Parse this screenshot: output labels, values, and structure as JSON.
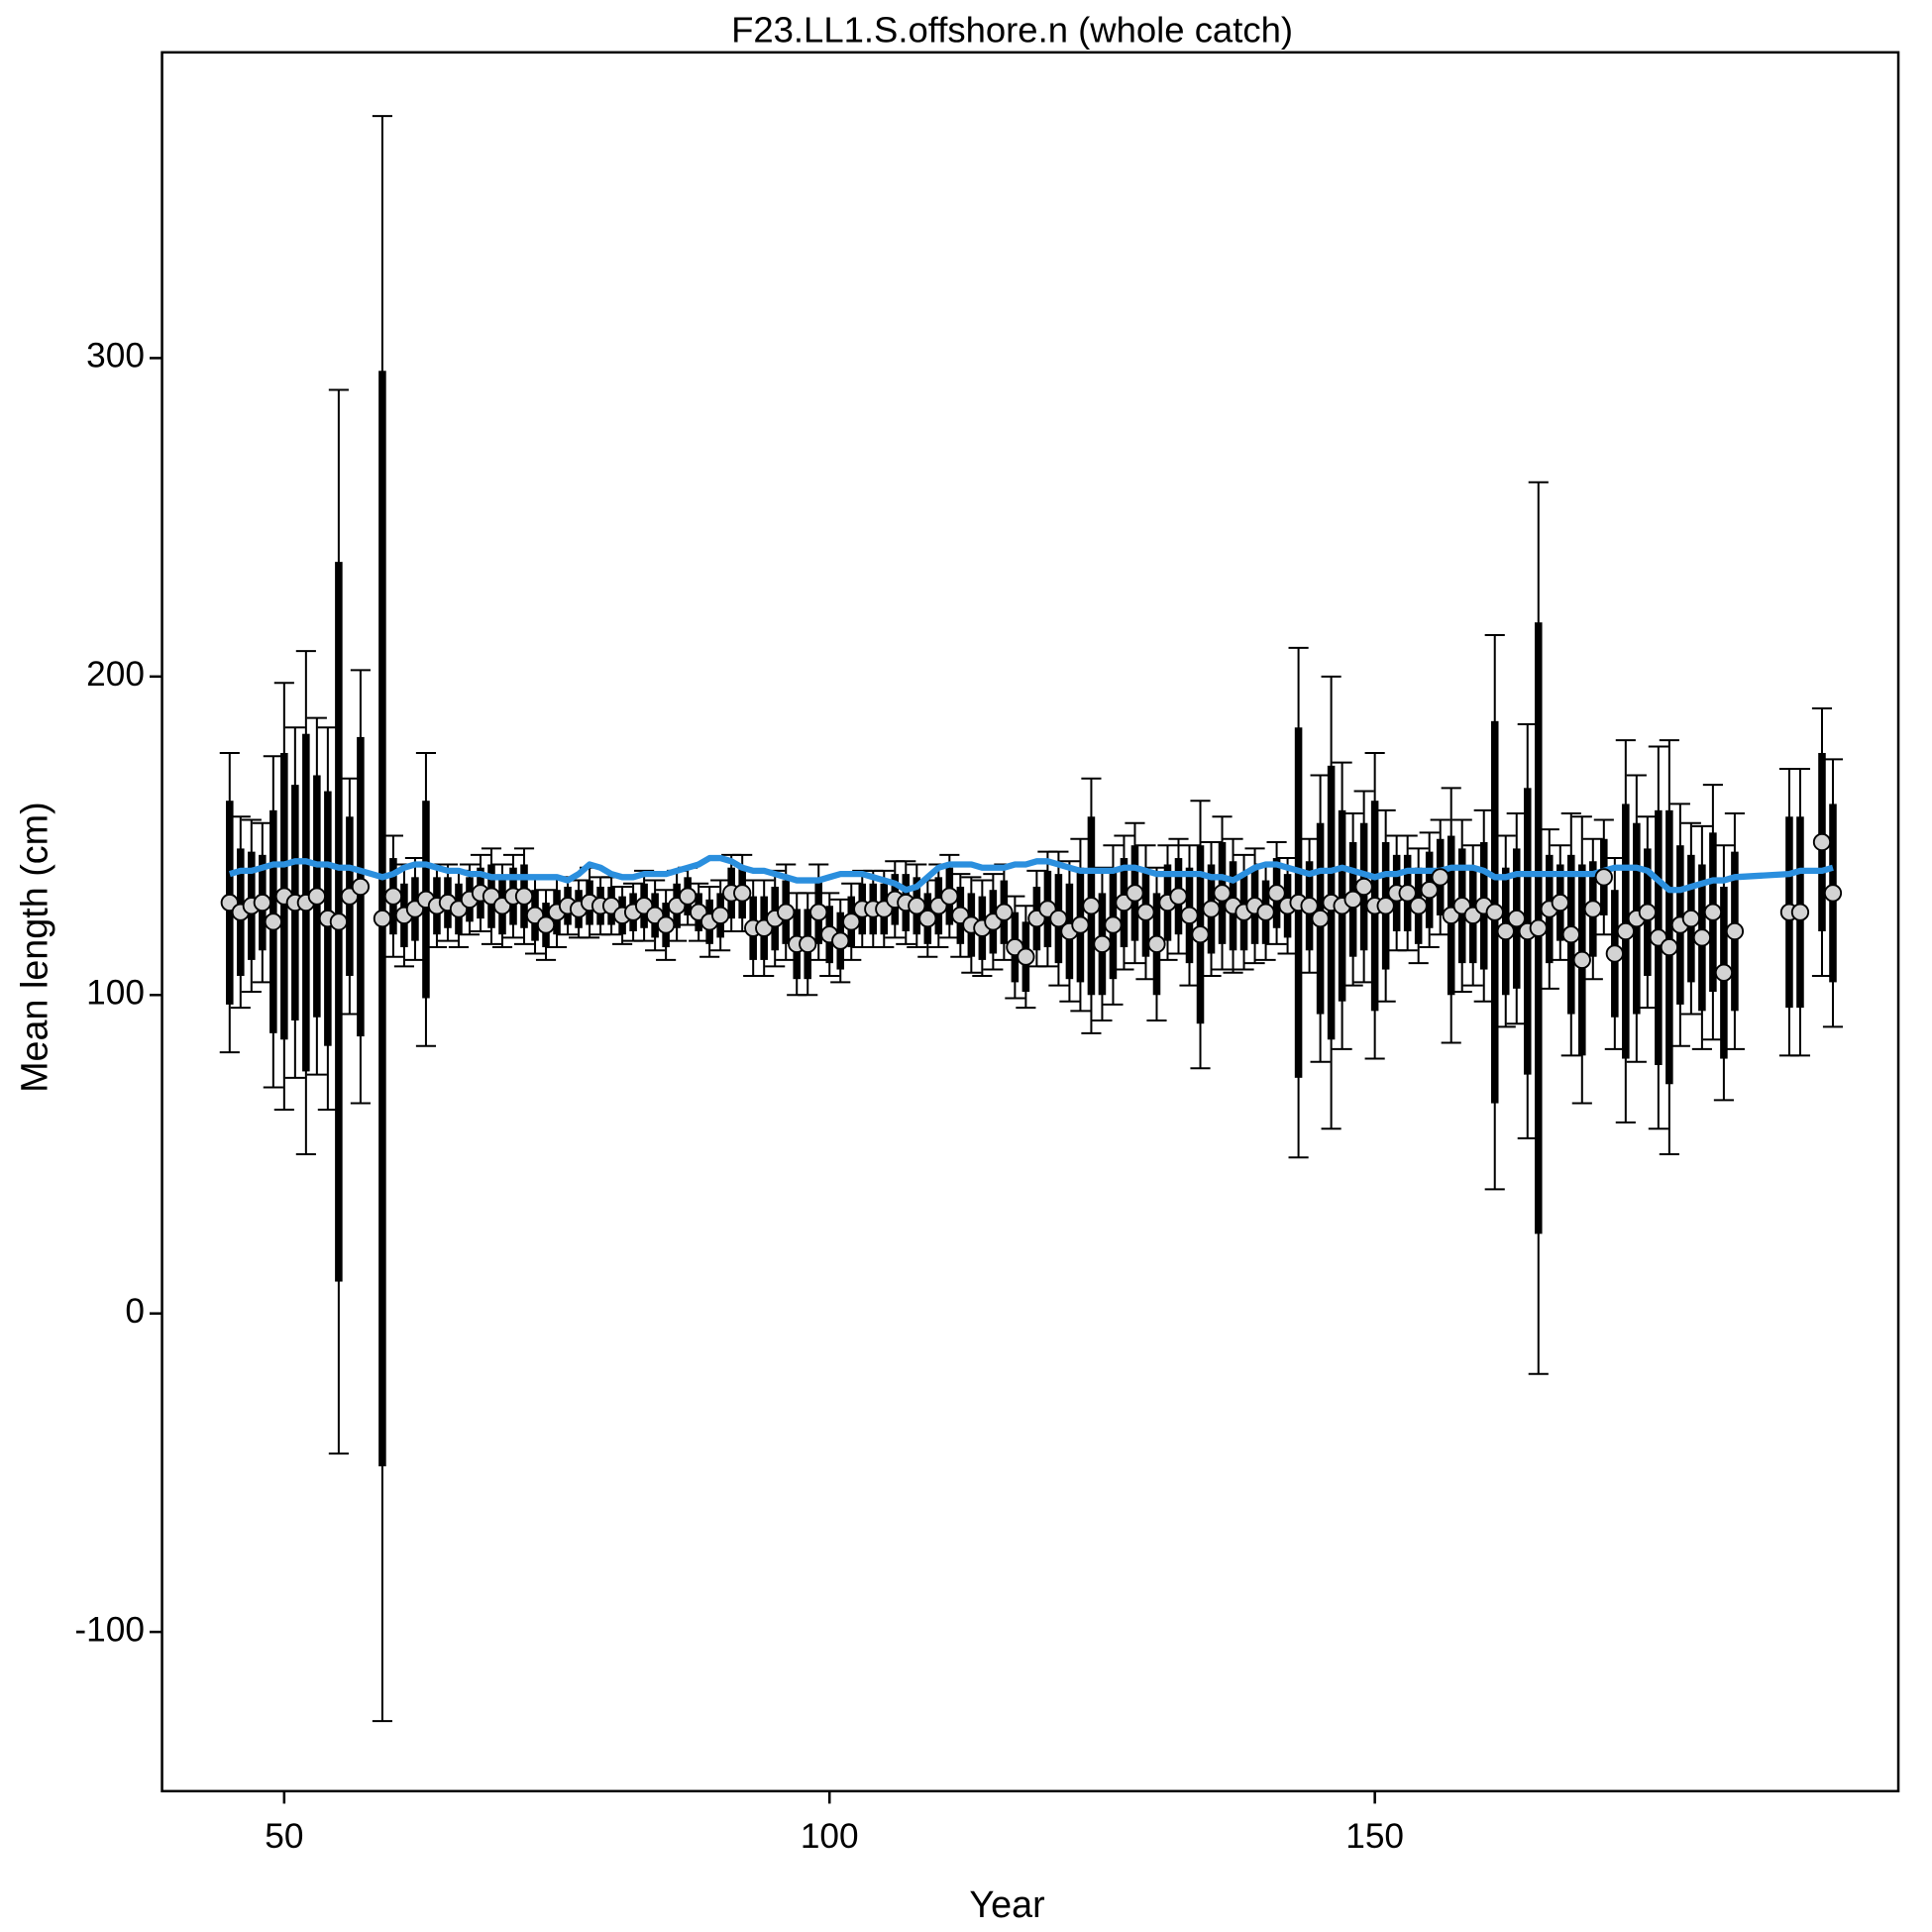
{
  "chart_data": {
    "type": "errorbar",
    "title": "F23.LL1.S.offshore.n (whole catch)",
    "x_label": "Year",
    "y_label": "Mean length (cm)",
    "xlim": [
      38.8,
      198
    ],
    "ylim": [
      -150,
      396
    ],
    "xticks": [
      50,
      100,
      150
    ],
    "yticks": [
      -100,
      0,
      100,
      200,
      300
    ],
    "point_fill": "#d3d3d3",
    "bar_color": "#000000",
    "expected_color": "#2b8fde",
    "x": [
      45,
      46,
      47,
      48,
      49,
      50,
      51,
      52,
      53,
      54,
      55,
      56,
      57,
      59,
      60,
      61,
      62,
      63,
      64,
      65,
      66,
      67,
      68,
      69,
      70,
      71,
      72,
      73,
      74,
      75,
      76,
      77,
      78,
      79,
      80,
      81,
      82,
      83,
      84,
      85,
      86,
      87,
      88,
      89,
      90,
      91,
      92,
      93,
      94,
      95,
      96,
      97,
      98,
      99,
      100,
      101,
      102,
      103,
      104,
      105,
      106,
      107,
      108,
      109,
      110,
      111,
      112,
      113,
      114,
      115,
      116,
      117,
      118,
      119,
      120,
      121,
      122,
      123,
      124,
      125,
      126,
      127,
      128,
      129,
      130,
      131,
      132,
      133,
      134,
      135,
      136,
      137,
      138,
      139,
      140,
      141,
      142,
      143,
      144,
      145,
      146,
      147,
      148,
      149,
      150,
      151,
      152,
      153,
      154,
      155,
      156,
      157,
      158,
      159,
      160,
      161,
      162,
      163,
      164,
      165,
      166,
      167,
      168,
      169,
      170,
      171,
      172,
      173,
      174,
      175,
      176,
      177,
      178,
      179,
      180,
      181,
      182,
      183,
      188,
      189,
      191,
      192
    ],
    "observed": [
      129,
      126,
      128,
      129,
      123,
      131,
      129,
      129,
      131,
      124,
      123,
      131,
      134,
      124,
      131,
      125,
      127,
      130,
      128,
      129,
      127,
      130,
      132,
      131,
      128,
      131,
      131,
      125,
      122,
      126,
      128,
      127,
      129,
      128,
      128,
      125,
      126,
      128,
      125,
      122,
      128,
      131,
      126,
      123,
      125,
      132,
      132,
      121,
      121,
      124,
      126,
      116,
      116,
      126,
      119,
      117,
      123,
      127,
      127,
      127,
      130,
      129,
      128,
      124,
      128,
      131,
      125,
      122,
      121,
      123,
      126,
      115,
      112,
      124,
      127,
      124,
      120,
      122,
      128,
      116,
      122,
      129,
      132,
      126,
      116,
      129,
      131,
      125,
      119,
      127,
      132,
      128,
      126,
      128,
      126,
      132,
      128,
      129,
      128,
      124,
      129,
      128,
      130,
      134,
      128,
      128,
      132,
      132,
      128,
      133,
      137,
      125,
      128,
      125,
      128,
      126,
      120,
      124,
      120,
      121,
      127,
      129,
      119,
      111,
      127,
      137,
      113,
      120,
      124,
      126,
      118,
      115,
      122,
      124,
      118,
      126,
      107,
      120,
      126,
      126,
      148,
      132
    ],
    "error_inner": [
      32,
      20,
      17,
      15,
      35,
      45,
      37,
      53,
      38,
      40,
      113,
      25,
      47,
      172,
      12,
      10,
      10,
      31,
      9,
      8,
      8,
      7,
      8,
      10,
      9,
      9,
      10,
      8,
      7,
      7,
      6,
      6,
      7,
      6,
      6,
      6,
      6,
      7,
      7,
      7,
      7,
      6,
      6,
      7,
      7,
      8,
      8,
      10,
      10,
      10,
      10,
      11,
      11,
      10,
      9,
      9,
      8,
      8,
      8,
      8,
      8,
      9,
      9,
      8,
      9,
      9,
      9,
      10,
      10,
      10,
      10,
      11,
      11,
      10,
      12,
      14,
      15,
      18,
      28,
      16,
      17,
      14,
      15,
      14,
      16,
      12,
      12,
      15,
      28,
      14,
      16,
      14,
      12,
      12,
      10,
      11,
      10,
      55,
      14,
      30,
      43,
      30,
      18,
      20,
      33,
      20,
      12,
      12,
      12,
      12,
      12,
      25,
      18,
      15,
      20,
      60,
      20,
      22,
      45,
      96,
      17,
      12,
      25,
      30,
      15,
      12,
      20,
      40,
      30,
      20,
      40,
      43,
      25,
      20,
      23,
      25,
      27,
      25,
      30,
      30,
      28,
      28
    ],
    "error_outer": [
      47,
      30,
      27,
      25,
      52,
      67,
      55,
      79,
      56,
      60,
      167,
      37,
      68,
      252,
      19,
      16,
      16,
      46,
      13,
      12,
      12,
      11,
      12,
      15,
      13,
      13,
      15,
      12,
      11,
      11,
      9,
      9,
      11,
      9,
      9,
      9,
      9,
      11,
      11,
      11,
      11,
      9,
      9,
      11,
      11,
      12,
      12,
      15,
      15,
      15,
      15,
      16,
      16,
      15,
      13,
      13,
      12,
      12,
      12,
      12,
      12,
      13,
      13,
      12,
      13,
      13,
      13,
      15,
      15,
      15,
      15,
      16,
      16,
      15,
      18,
      21,
      22,
      27,
      40,
      24,
      25,
      21,
      22,
      21,
      24,
      18,
      18,
      22,
      42,
      21,
      24,
      21,
      18,
      18,
      15,
      16,
      15,
      80,
      21,
      45,
      71,
      45,
      27,
      30,
      48,
      30,
      18,
      18,
      18,
      18,
      18,
      40,
      27,
      22,
      30,
      87,
      30,
      33,
      65,
      140,
      25,
      18,
      38,
      45,
      22,
      18,
      30,
      60,
      45,
      30,
      60,
      65,
      38,
      30,
      35,
      40,
      40,
      37,
      45,
      45,
      42,
      42
    ],
    "expected": [
      138,
      139,
      139,
      140,
      141,
      141,
      142,
      142,
      141,
      141,
      140,
      140,
      139,
      137,
      138,
      140,
      141,
      141,
      140,
      139,
      139,
      138,
      138,
      137,
      137,
      137,
      137,
      137,
      137,
      137,
      136,
      138,
      141,
      140,
      138,
      137,
      137,
      138,
      138,
      138,
      139,
      140,
      141,
      143,
      143,
      142,
      140,
      139,
      139,
      138,
      137,
      136,
      136,
      136,
      137,
      138,
      138,
      138,
      137,
      136,
      135,
      133,
      134,
      137,
      140,
      141,
      141,
      141,
      140,
      140,
      140,
      141,
      141,
      142,
      142,
      141,
      140,
      139,
      139,
      139,
      139,
      140,
      140,
      139,
      138,
      138,
      138,
      138,
      138,
      137,
      137,
      136,
      138,
      140,
      141,
      141,
      140,
      139,
      138,
      139,
      139,
      140,
      139,
      138,
      137,
      138,
      138,
      139,
      139,
      139,
      139,
      140,
      140,
      140,
      139,
      137,
      137,
      138,
      138,
      138,
      138,
      138,
      138,
      138,
      138,
      139,
      140,
      140,
      140,
      139,
      136,
      133,
      133,
      134,
      135,
      136,
      136,
      137,
      138,
      139,
      139,
      140
    ]
  }
}
